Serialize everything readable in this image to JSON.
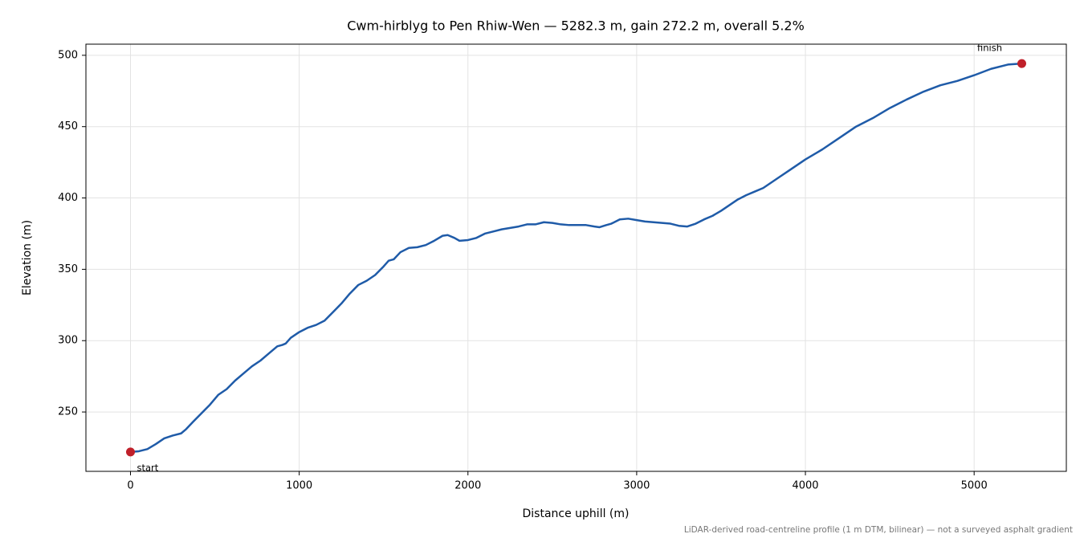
{
  "chart_data": {
    "type": "line",
    "title": "Cwm-hirblyg to Pen Rhiw-Wen — 5282.3 m, gain 272.2 m, overall 5.2%",
    "xlabel": "Distance uphill (m)",
    "ylabel": "Elevation (m)",
    "note": "LiDAR-derived road-centreline profile (1 m DTM, bilinear) — not a surveyed asphalt gradient",
    "color": "#1f5ba8",
    "x": [
      0,
      50,
      100,
      150,
      200,
      250,
      300,
      330,
      370,
      420,
      470,
      520,
      570,
      620,
      670,
      720,
      770,
      820,
      870,
      900,
      920,
      950,
      1000,
      1050,
      1100,
      1150,
      1200,
      1250,
      1300,
      1350,
      1400,
      1450,
      1500,
      1530,
      1560,
      1600,
      1650,
      1700,
      1750,
      1800,
      1850,
      1880,
      1920,
      1950,
      2000,
      2050,
      2100,
      2150,
      2200,
      2250,
      2300,
      2350,
      2400,
      2450,
      2500,
      2550,
      2600,
      2650,
      2700,
      2750,
      2780,
      2820,
      2850,
      2900,
      2950,
      3000,
      3050,
      3100,
      3150,
      3200,
      3250,
      3300,
      3350,
      3400,
      3450,
      3500,
      3550,
      3600,
      3650,
      3700,
      3750,
      3800,
      3850,
      3900,
      3950,
      4000,
      4100,
      4200,
      4300,
      4400,
      4500,
      4600,
      4700,
      4800,
      4900,
      5000,
      5100,
      5200,
      5282.3
    ],
    "values": [
      222,
      222.5,
      224,
      227.5,
      231.5,
      233.5,
      235,
      238,
      243,
      249,
      255,
      262,
      266,
      272,
      277,
      282,
      286,
      291,
      296,
      297,
      298,
      302,
      306,
      309,
      311,
      314,
      320,
      326,
      333,
      339,
      342,
      346,
      352,
      356,
      357,
      362,
      365,
      365.5,
      367,
      370,
      373.5,
      374,
      372,
      370,
      370.5,
      372,
      375,
      376.5,
      378,
      379,
      380,
      381.5,
      381.5,
      383,
      382.5,
      381.5,
      381,
      381,
      381,
      380,
      379.5,
      381,
      382,
      385,
      385.5,
      384.5,
      383.5,
      383,
      382.5,
      382,
      380.5,
      380,
      382,
      385,
      387.5,
      391,
      395,
      399,
      402,
      404.5,
      407,
      411,
      415,
      419,
      423,
      427,
      434,
      442,
      450,
      456,
      463,
      469,
      474.5,
      479,
      482,
      486,
      490.5,
      493.5,
      494.2
    ],
    "markers": {
      "x": [
        0,
        5282.3
      ],
      "y": [
        222,
        494.2
      ],
      "labels": [
        "start",
        "finish"
      ],
      "color": "#c0202a"
    },
    "xlim": [
      -264.1,
      5546.4
    ],
    "ylim": [
      208.4,
      507.8
    ],
    "xticks": [
      0,
      1000,
      2000,
      3000,
      4000,
      5000
    ],
    "yticks": [
      250,
      300,
      350,
      400,
      450,
      500
    ],
    "grid": true
  }
}
